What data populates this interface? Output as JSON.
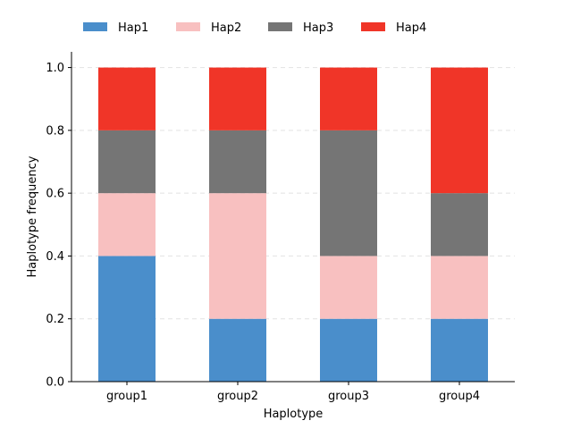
{
  "chart_data": {
    "type": "bar",
    "stacked": true,
    "categories": [
      "group1",
      "group2",
      "group3",
      "group4"
    ],
    "series": [
      {
        "name": "Hap1",
        "color": "#4a8ecb",
        "values": [
          0.4,
          0.2,
          0.2,
          0.2
        ]
      },
      {
        "name": "Hap2",
        "color": "#f8c0c0",
        "values": [
          0.2,
          0.4,
          0.2,
          0.2
        ]
      },
      {
        "name": "Hap3",
        "color": "#757575",
        "values": [
          0.2,
          0.2,
          0.4,
          0.2
        ]
      },
      {
        "name": "Hap4",
        "color": "#f03528",
        "values": [
          0.2,
          0.2,
          0.2,
          0.4
        ]
      }
    ],
    "xlabel": "Haplotype",
    "ylabel": "Haplotype frequency",
    "ylim": [
      0,
      1.05
    ],
    "yticks": [
      "0.0",
      "0.2",
      "0.4",
      "0.6",
      "0.8",
      "1.0"
    ],
    "grid": "horizontal-dashed",
    "legend_position": "top"
  }
}
